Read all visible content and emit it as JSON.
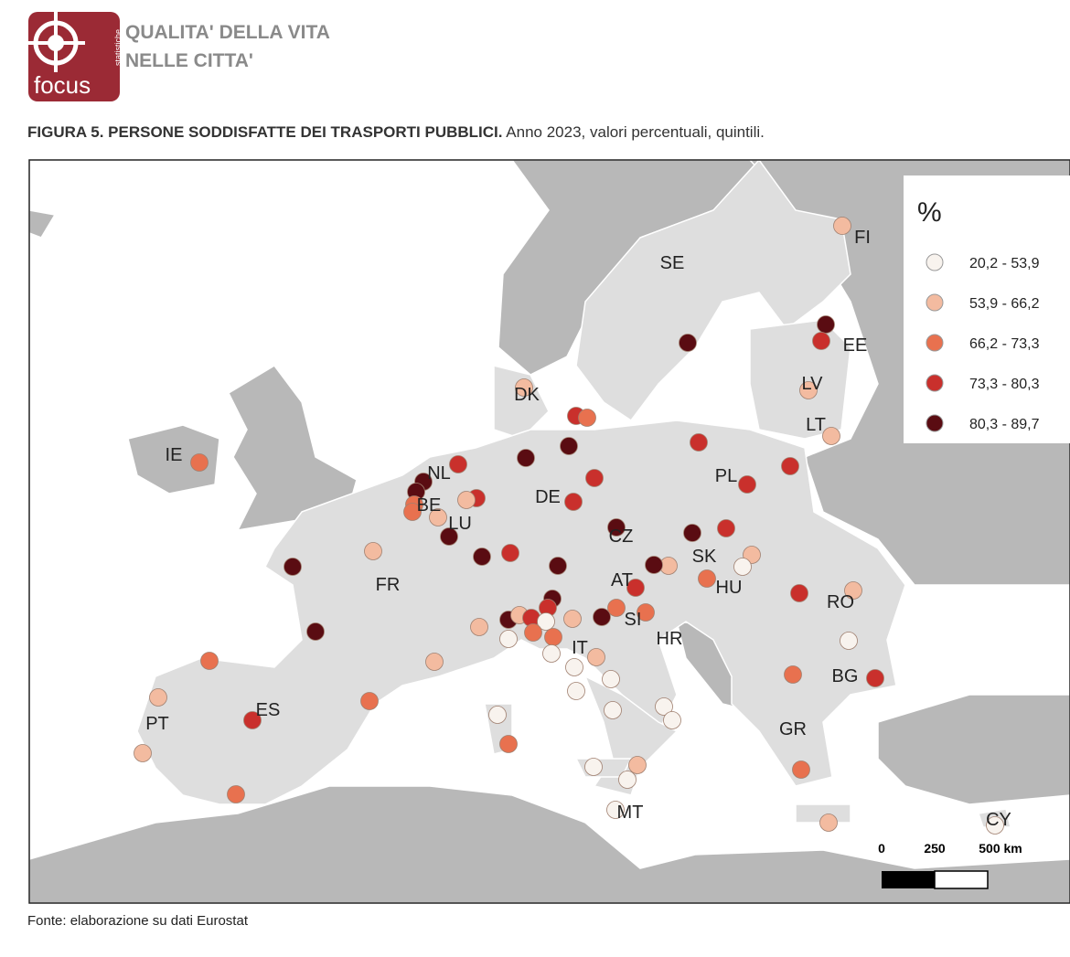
{
  "header": {
    "logo_text": "focus",
    "logo_subtext": "statistiche",
    "title_lines": [
      "QUALITA' DELLA VITA",
      "NELLE CITTA'"
    ]
  },
  "figure": {
    "title": "FIGURA 5. PERSONE SODDISFATTE DEI TRASPORTI PUBBLICI.",
    "subtitle": "Anno 2023, valori percentuali, quintili."
  },
  "map": {
    "country_labels": [
      "SE",
      "FI",
      "EE",
      "LV",
      "LT",
      "DK",
      "IE",
      "NL",
      "BE",
      "LU",
      "DE",
      "PL",
      "CZ",
      "SK",
      "AT",
      "HU",
      "RO",
      "SI",
      "HR",
      "IT",
      "BG",
      "GR",
      "FR",
      "ES",
      "PT",
      "MT",
      "CY"
    ],
    "legend": {
      "title": "%",
      "classes": [
        {
          "label": "20,2 - 53,9",
          "color": "#f8f3ee"
        },
        {
          "label": "53,9 - 66,2",
          "color": "#f3bba0"
        },
        {
          "label": "66,2 - 73,3",
          "color": "#e8714f"
        },
        {
          "label": "73,3 - 80,3",
          "color": "#c9302c"
        },
        {
          "label": "80,3 - 89,7",
          "color": "#5a0c12"
        }
      ]
    },
    "scale_bar": {
      "labels": [
        "0",
        "250",
        "500 km"
      ]
    }
  },
  "source": "Fonte: elaborazione su dati Eurostat"
}
